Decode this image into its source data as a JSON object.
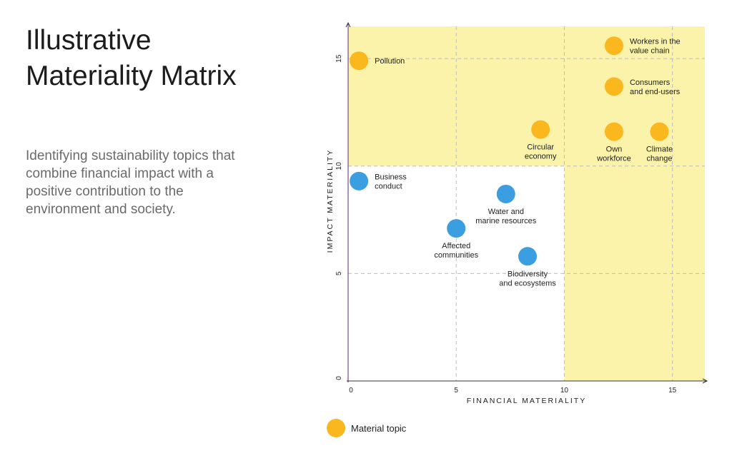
{
  "header": {
    "title": "Illustrative Materiality Matrix",
    "subtitle": "Identifying sustainability topics that combine financial impact with a positive contribution to the environment and society."
  },
  "legend": {
    "label": "Material topic",
    "color": "#fbb81e"
  },
  "colors": {
    "material": "#fbb81e",
    "non_material": "#3b9ee0",
    "highlight_zone": "#faf3a9",
    "axis": "#7a4a8a",
    "grid": "#bdbdbd"
  },
  "chart_data": {
    "type": "scatter",
    "title": "",
    "xlabel": "FINANCIAL MATERIALITY",
    "ylabel": "IMPACT MATERIALITY",
    "xlim": [
      0,
      16.5
    ],
    "ylim": [
      0,
      16.5
    ],
    "xticks": [
      0,
      5,
      10,
      15
    ],
    "yticks": [
      0,
      5,
      10,
      15
    ],
    "threshold": {
      "x": 10,
      "y": 10
    },
    "grid": true,
    "legend_position": "bottom-left",
    "points": [
      {
        "label_lines": [
          "Workers in the",
          "value chain"
        ],
        "x": 12.3,
        "y": 15.6,
        "material": true,
        "label_pos": "right"
      },
      {
        "label_lines": [
          "Pollution"
        ],
        "x": 0.5,
        "y": 14.9,
        "material": true,
        "label_pos": "right"
      },
      {
        "label_lines": [
          "Consumers",
          "and end-users"
        ],
        "x": 12.3,
        "y": 13.7,
        "material": true,
        "label_pos": "right"
      },
      {
        "label_lines": [
          "Circular",
          "economy"
        ],
        "x": 8.9,
        "y": 11.7,
        "material": true,
        "label_pos": "below"
      },
      {
        "label_lines": [
          "Own",
          "workforce"
        ],
        "x": 12.3,
        "y": 11.6,
        "material": true,
        "label_pos": "below"
      },
      {
        "label_lines": [
          "Climate",
          "change"
        ],
        "x": 14.4,
        "y": 11.6,
        "material": true,
        "label_pos": "below"
      },
      {
        "label_lines": [
          "Business",
          "conduct"
        ],
        "x": 0.5,
        "y": 9.3,
        "material": false,
        "label_pos": "right"
      },
      {
        "label_lines": [
          "Water and",
          "marine resources"
        ],
        "x": 7.3,
        "y": 8.7,
        "material": false,
        "label_pos": "below"
      },
      {
        "label_lines": [
          "Affected",
          "communities"
        ],
        "x": 5.0,
        "y": 7.1,
        "material": false,
        "label_pos": "below"
      },
      {
        "label_lines": [
          "Biodiversity",
          "and ecosystems"
        ],
        "x": 8.3,
        "y": 5.8,
        "material": false,
        "label_pos": "below"
      }
    ]
  }
}
